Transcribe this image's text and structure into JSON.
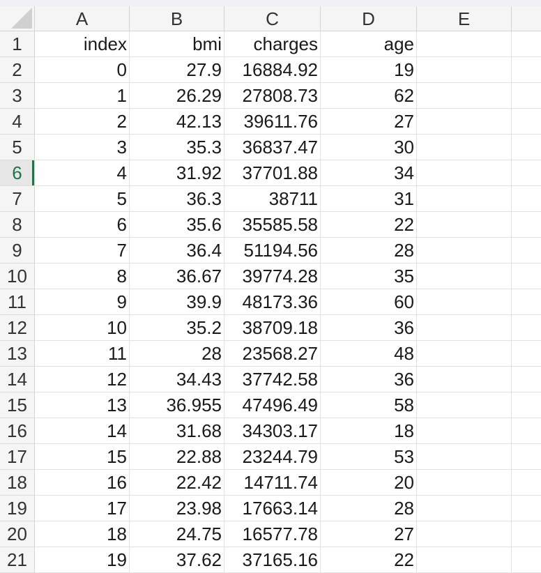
{
  "sheet": {
    "column_headers": [
      "A",
      "B",
      "C",
      "D",
      "E"
    ],
    "selected_row": 6,
    "rows": [
      {
        "num": "1",
        "cells": [
          "index",
          "bmi",
          "charges",
          "age",
          ""
        ]
      },
      {
        "num": "2",
        "cells": [
          "0",
          "27.9",
          "16884.92",
          "19",
          ""
        ]
      },
      {
        "num": "3",
        "cells": [
          "1",
          "26.29",
          "27808.73",
          "62",
          ""
        ]
      },
      {
        "num": "4",
        "cells": [
          "2",
          "42.13",
          "39611.76",
          "27",
          ""
        ]
      },
      {
        "num": "5",
        "cells": [
          "3",
          "35.3",
          "36837.47",
          "30",
          ""
        ]
      },
      {
        "num": "6",
        "cells": [
          "4",
          "31.92",
          "37701.88",
          "34",
          ""
        ]
      },
      {
        "num": "7",
        "cells": [
          "5",
          "36.3",
          "38711",
          "31",
          ""
        ]
      },
      {
        "num": "8",
        "cells": [
          "6",
          "35.6",
          "35585.58",
          "22",
          ""
        ]
      },
      {
        "num": "9",
        "cells": [
          "7",
          "36.4",
          "51194.56",
          "28",
          ""
        ]
      },
      {
        "num": "10",
        "cells": [
          "8",
          "36.67",
          "39774.28",
          "35",
          ""
        ]
      },
      {
        "num": "11",
        "cells": [
          "9",
          "39.9",
          "48173.36",
          "60",
          ""
        ]
      },
      {
        "num": "12",
        "cells": [
          "10",
          "35.2",
          "38709.18",
          "36",
          ""
        ]
      },
      {
        "num": "13",
        "cells": [
          "11",
          "28",
          "23568.27",
          "48",
          ""
        ]
      },
      {
        "num": "14",
        "cells": [
          "12",
          "34.43",
          "37742.58",
          "36",
          ""
        ]
      },
      {
        "num": "15",
        "cells": [
          "13",
          "36.955",
          "47496.49",
          "58",
          ""
        ]
      },
      {
        "num": "16",
        "cells": [
          "14",
          "31.68",
          "34303.17",
          "18",
          ""
        ]
      },
      {
        "num": "17",
        "cells": [
          "15",
          "22.88",
          "23244.79",
          "53",
          ""
        ]
      },
      {
        "num": "18",
        "cells": [
          "16",
          "22.42",
          "14711.74",
          "20",
          ""
        ]
      },
      {
        "num": "19",
        "cells": [
          "17",
          "23.98",
          "17663.14",
          "28",
          ""
        ]
      },
      {
        "num": "20",
        "cells": [
          "18",
          "24.75",
          "16577.78",
          "27",
          ""
        ]
      },
      {
        "num": "21",
        "cells": [
          "19",
          "37.62",
          "37165.16",
          "22",
          ""
        ]
      }
    ]
  }
}
